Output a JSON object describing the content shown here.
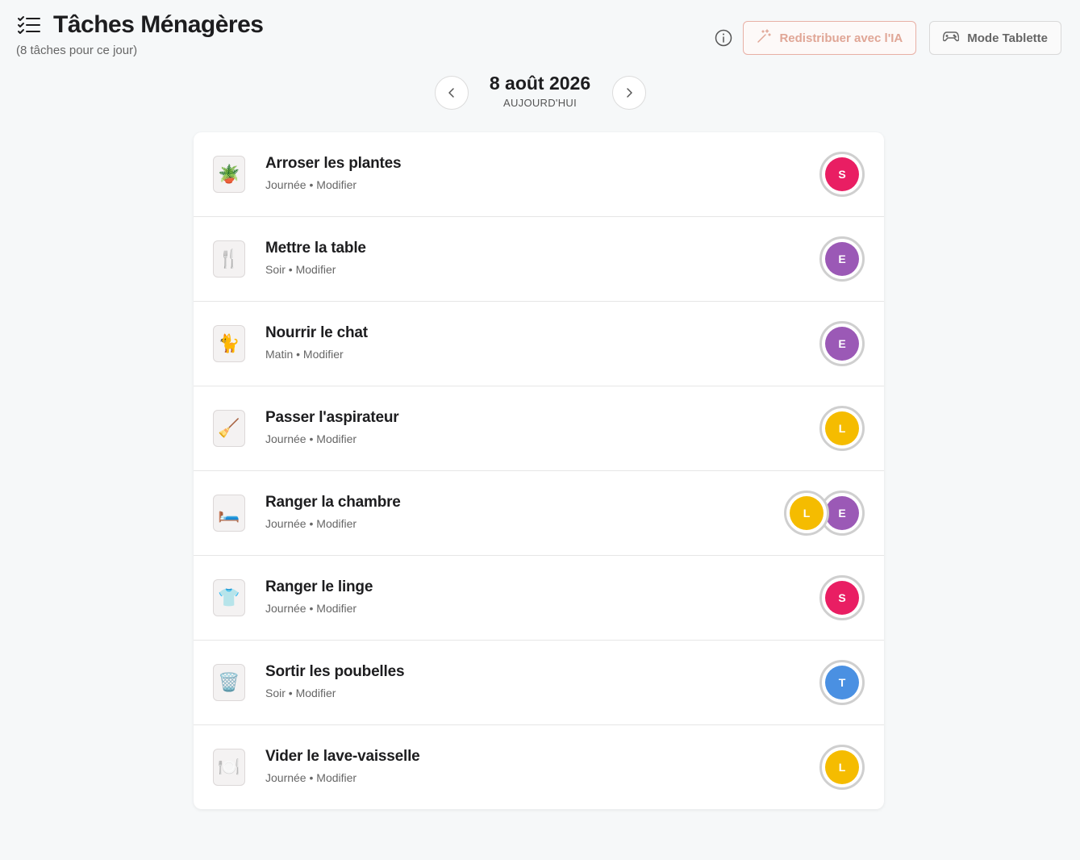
{
  "header": {
    "title": "Tâches Ménagères",
    "subtitle": "(8 tâches pour ce jour)"
  },
  "actions": {
    "ai_label": "Redistribuer avec l'IA",
    "tablet_label": "Mode Tablette"
  },
  "date": {
    "main": "8 août 2026",
    "sub": "AUJOURD'HUI"
  },
  "colors": {
    "S": "#e91e63",
    "E": "#9b59b6",
    "L": "#f5bc00",
    "T": "#4a90e2"
  },
  "tasks": [
    {
      "title": "Arroser les plantes",
      "period": "Journée",
      "modify": "Modifier",
      "icon": "🪴",
      "icon_name": "plant-icon",
      "assignees": [
        "S"
      ]
    },
    {
      "title": "Mettre la table",
      "period": "Soir",
      "modify": "Modifier",
      "icon": "🍴",
      "icon_name": "fork-knife-icon",
      "assignees": [
        "E"
      ]
    },
    {
      "title": "Nourrir le chat",
      "period": "Matin",
      "modify": "Modifier",
      "icon": "🐈",
      "icon_name": "cat-icon",
      "assignees": [
        "E"
      ]
    },
    {
      "title": "Passer l'aspirateur",
      "period": "Journée",
      "modify": "Modifier",
      "icon": "🧹",
      "icon_name": "broom-icon",
      "assignees": [
        "L"
      ]
    },
    {
      "title": "Ranger la chambre",
      "period": "Journée",
      "modify": "Modifier",
      "icon": "🛏️",
      "icon_name": "bed-icon",
      "assignees": [
        "E",
        "L"
      ]
    },
    {
      "title": "Ranger le linge",
      "period": "Journée",
      "modify": "Modifier",
      "icon": "👕",
      "icon_name": "tshirt-icon",
      "assignees": [
        "S"
      ]
    },
    {
      "title": "Sortir les poubelles",
      "period": "Soir",
      "modify": "Modifier",
      "icon": "🗑️",
      "icon_name": "trash-bin-icon",
      "assignees": [
        "T"
      ]
    },
    {
      "title": "Vider le lave-vaisselle",
      "period": "Journée",
      "modify": "Modifier",
      "icon": "🍽️",
      "icon_name": "plate-icon",
      "assignees": [
        "L"
      ]
    }
  ]
}
